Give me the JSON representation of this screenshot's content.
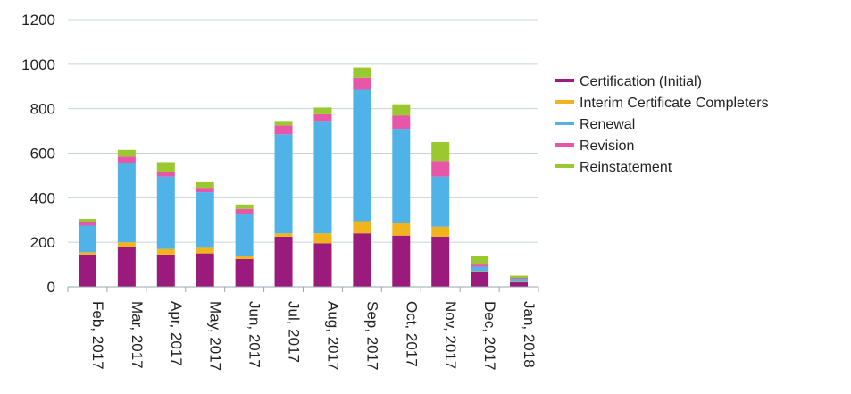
{
  "chart_data": {
    "type": "bar",
    "stacked": true,
    "categories": [
      "Feb, 2017",
      "Mar, 2017",
      "Apr, 2017",
      "May, 2017",
      "Jun, 2017",
      "Jul, 2017",
      "Aug, 2017",
      "Sep, 2017",
      "Oct, 2017",
      "Nov, 2017",
      "Dec, 2017",
      "Jan, 2018"
    ],
    "series": [
      {
        "name": "Certification (Initial)",
        "color": "#9b1b7d",
        "values": [
          145,
          180,
          145,
          150,
          125,
          225,
          195,
          240,
          230,
          225,
          65,
          20
        ]
      },
      {
        "name": "Interim Certificate Completers",
        "color": "#f2b41c",
        "values": [
          10,
          20,
          25,
          25,
          15,
          15,
          45,
          55,
          55,
          45,
          5,
          2
        ]
      },
      {
        "name": "Renewal",
        "color": "#4fb3e8",
        "values": [
          120,
          355,
          325,
          250,
          185,
          445,
          505,
          590,
          425,
          225,
          20,
          14
        ]
      },
      {
        "name": "Revision",
        "color": "#e857a7",
        "values": [
          15,
          30,
          20,
          20,
          25,
          40,
          30,
          55,
          60,
          70,
          10,
          4
        ]
      },
      {
        "name": "Reinstatement",
        "color": "#9ac92f",
        "values": [
          15,
          30,
          45,
          25,
          20,
          20,
          30,
          45,
          50,
          85,
          40,
          10
        ]
      }
    ],
    "yticks": [
      "0",
      "200",
      "400",
      "600",
      "800",
      "1000",
      "1200"
    ],
    "ylim": [
      0,
      1200
    ],
    "grid": true,
    "legend_position": "right",
    "title": "",
    "xlabel": "",
    "ylabel": ""
  }
}
